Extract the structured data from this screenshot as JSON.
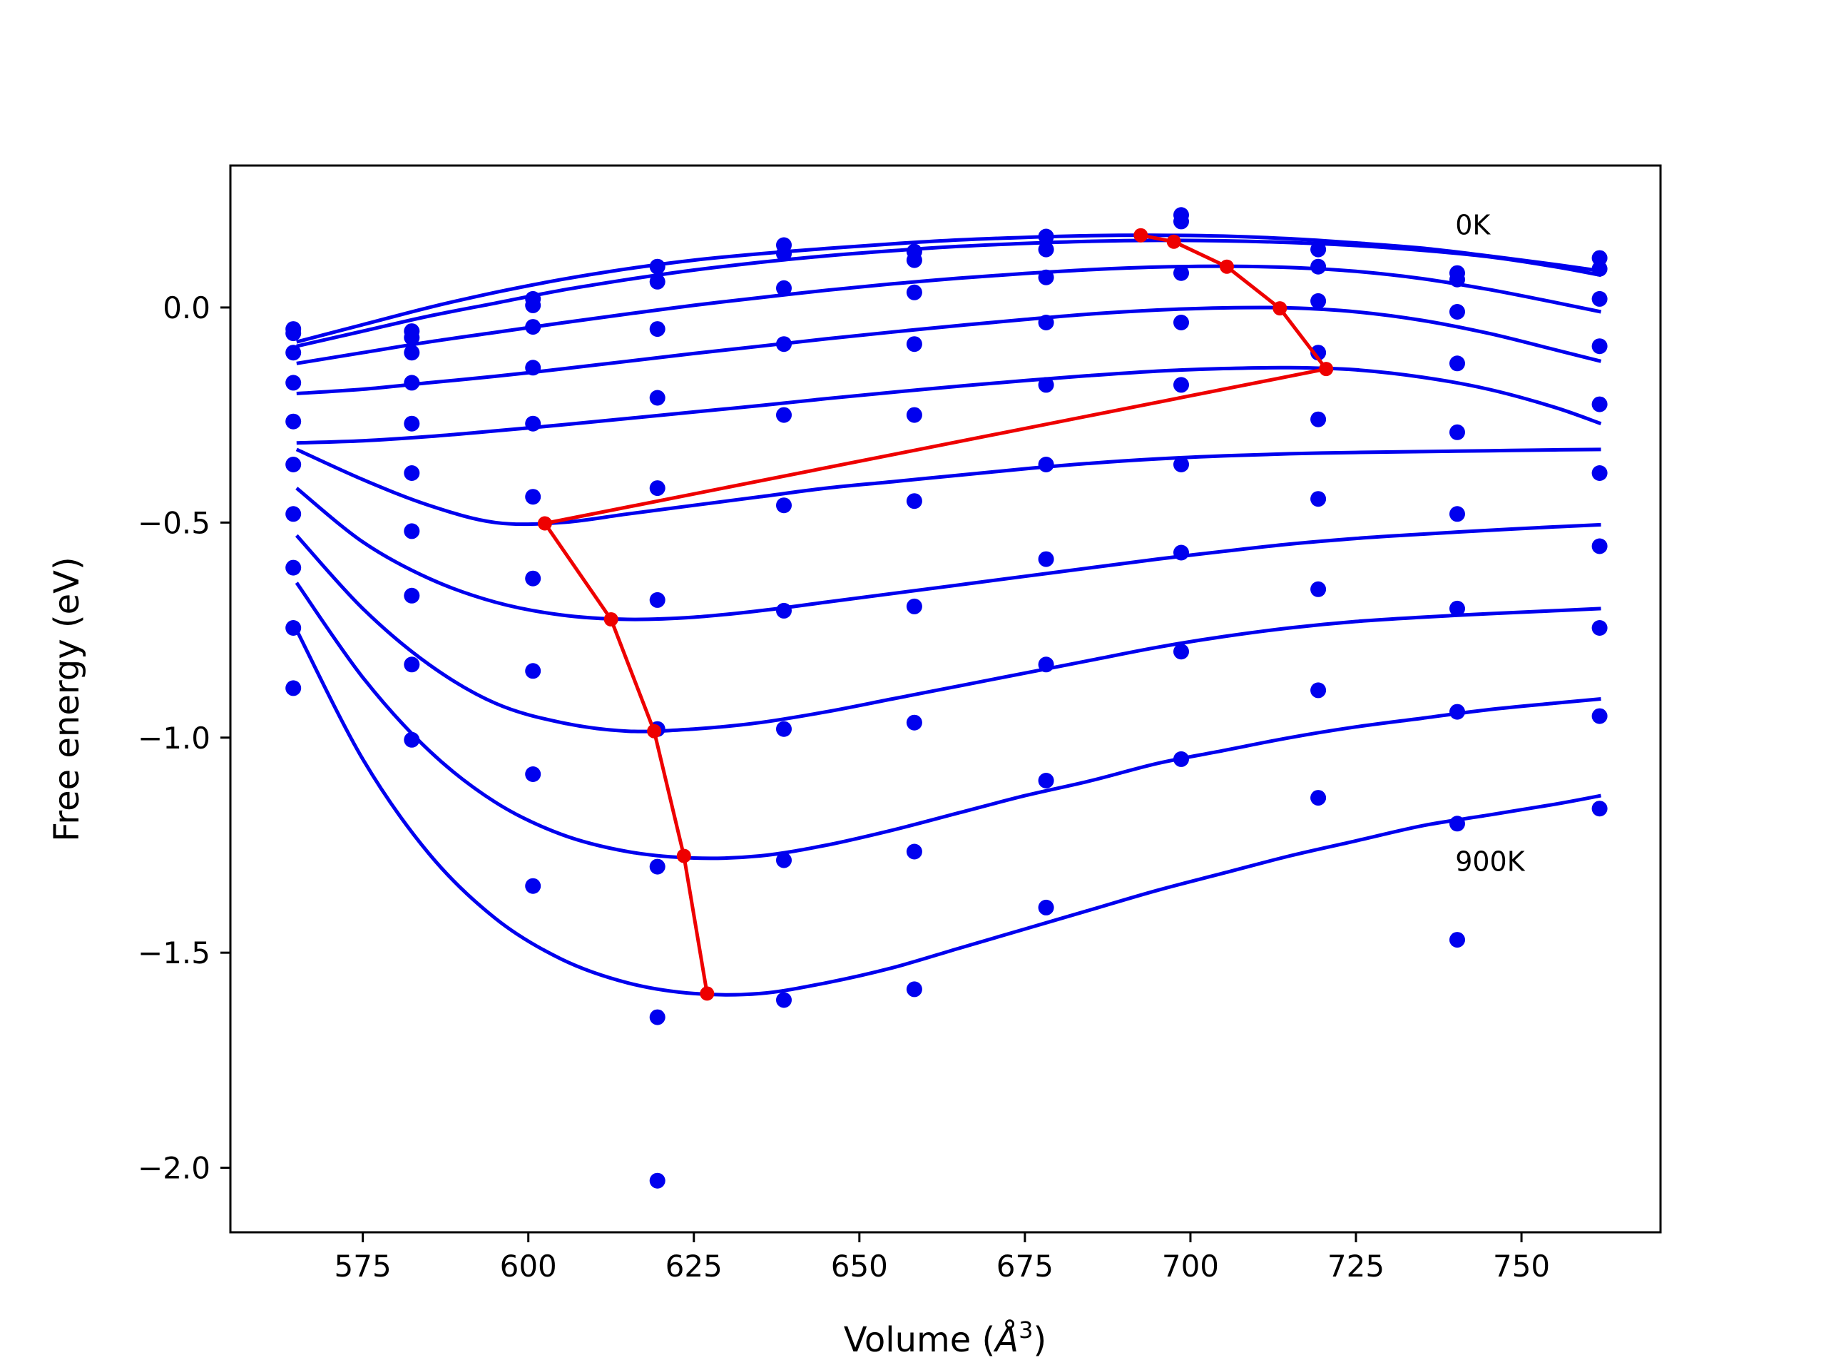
{
  "chart_data": {
    "type": "line",
    "title": "",
    "xlabel": "Volume (",
    "xlabel_unit": "Å",
    "xlabel_sup": "3",
    "xlabel_close": ")",
    "ylabel": "Free energy (eV)",
    "xlim": [
      555,
      771
    ],
    "ylim": [
      -2.15,
      0.33
    ],
    "xticks": [
      575,
      600,
      625,
      650,
      675,
      700,
      725,
      750
    ],
    "xtick_labels": [
      "575",
      "600",
      "625",
      "650",
      "675",
      "700",
      "725",
      "750"
    ],
    "yticks": [
      0.0,
      -0.5,
      -1.0,
      -1.5,
      -2.0
    ],
    "ytick_labels": [
      "0.0",
      "−0.5",
      "−1.0",
      "−1.5",
      "−2.0"
    ],
    "grid": false,
    "annotations": [
      {
        "text": "0K",
        "x": 740,
        "y": 0.17
      },
      {
        "text": "900K",
        "x": 740,
        "y": -1.31
      }
    ],
    "colors": {
      "curves": "#0000ee",
      "points": "#0000ee",
      "equilibrium": "#ee0000"
    },
    "volumes": [
      564.5,
      582.4,
      600.7,
      619.5,
      638.6,
      658.3,
      678.2,
      698.6,
      719.3,
      740.3,
      761.8
    ],
    "point_series": [
      {
        "values": [
          -0.05,
          -0.055,
          0.02,
          0.095,
          0.145,
          0.13,
          0.165,
          0.215,
          0.135,
          0.08,
          0.115
        ]
      },
      {
        "values": [
          -0.06,
          -0.07,
          0.005,
          0.06,
          0.125,
          0.11,
          0.135,
          0.2,
          0.095,
          0.065,
          0.09
        ]
      },
      {
        "values": [
          -0.105,
          -0.105,
          -0.045,
          -0.05,
          0.045,
          0.035,
          0.07,
          0.08,
          0.015,
          -0.01,
          0.02
        ]
      },
      {
        "values": [
          -0.175,
          -0.175,
          -0.14,
          -0.21,
          -0.085,
          -0.085,
          -0.035,
          -0.035,
          -0.105,
          -0.13,
          -0.09
        ]
      },
      {
        "values": [
          -0.265,
          -0.27,
          -0.27,
          -0.42,
          -0.25,
          -0.25,
          -0.18,
          -0.18,
          -0.26,
          -0.29,
          -0.225
        ]
      },
      {
        "values": [
          -0.365,
          -0.385,
          -0.44,
          -0.68,
          -0.46,
          -0.45,
          -0.365,
          -0.365,
          -0.445,
          -0.48,
          -0.385
        ]
      },
      {
        "values": [
          -0.48,
          -0.52,
          -0.63,
          -0.98,
          -0.705,
          -0.695,
          -0.585,
          -0.57,
          -0.655,
          -0.7,
          -0.555
        ]
      },
      {
        "values": [
          -0.605,
          -0.67,
          -0.845,
          -1.3,
          -0.98,
          -0.965,
          -0.83,
          -0.8,
          -0.89,
          -0.94,
          -0.745
        ]
      },
      {
        "values": [
          -0.745,
          -0.83,
          -1.085,
          -1.65,
          -1.285,
          -1.265,
          -1.1,
          -1.05,
          -1.14,
          -1.2,
          -0.95
        ]
      },
      {
        "values": [
          -0.885,
          -1.005,
          -1.345,
          -2.03,
          -1.61,
          -1.585,
          -1.395,
          null,
          null,
          -1.47,
          -1.165
        ]
      }
    ],
    "fit_x": [
      565,
      575,
      585,
      595,
      605,
      615,
      625,
      635,
      645,
      655,
      665,
      675,
      685,
      695,
      705,
      715,
      725,
      735,
      745,
      755,
      762
    ],
    "fit_series": [
      {
        "values": [
          -0.08,
          -0.04,
          0.0,
          0.035,
          0.065,
          0.09,
          0.11,
          0.125,
          0.137,
          0.148,
          0.157,
          0.163,
          0.167,
          0.168,
          0.166,
          0.16,
          0.15,
          0.138,
          0.12,
          0.1,
          0.085
        ]
      },
      {
        "values": [
          -0.09,
          -0.055,
          -0.02,
          0.01,
          0.04,
          0.065,
          0.087,
          0.105,
          0.12,
          0.132,
          0.142,
          0.149,
          0.154,
          0.156,
          0.155,
          0.151,
          0.144,
          0.133,
          0.118,
          0.095,
          0.075
        ]
      },
      {
        "values": [
          -0.13,
          -0.105,
          -0.08,
          -0.058,
          -0.036,
          -0.015,
          0.005,
          0.023,
          0.04,
          0.055,
          0.068,
          0.079,
          0.088,
          0.094,
          0.096,
          0.093,
          0.084,
          0.067,
          0.042,
          0.012,
          -0.01
        ]
      },
      {
        "values": [
          -0.2,
          -0.19,
          -0.175,
          -0.16,
          -0.143,
          -0.125,
          -0.107,
          -0.09,
          -0.073,
          -0.057,
          -0.042,
          -0.028,
          -0.015,
          -0.006,
          -0.001,
          -0.001,
          -0.01,
          -0.03,
          -0.06,
          -0.098,
          -0.125
        ]
      },
      {
        "values": [
          -0.315,
          -0.31,
          -0.3,
          -0.287,
          -0.273,
          -0.258,
          -0.243,
          -0.228,
          -0.212,
          -0.197,
          -0.183,
          -0.17,
          -0.158,
          -0.148,
          -0.142,
          -0.14,
          -0.145,
          -0.162,
          -0.19,
          -0.232,
          -0.27
        ]
      },
      {
        "values": [
          -0.33,
          -0.4,
          -0.46,
          -0.5,
          -0.5,
          -0.48,
          -0.46,
          -0.44,
          -0.42,
          -0.405,
          -0.39,
          -0.375,
          -0.362,
          -0.352,
          -0.345,
          -0.34,
          -0.337,
          -0.335,
          -0.333,
          -0.331,
          -0.33
        ]
      },
      {
        "values": [
          -0.42,
          -0.545,
          -0.63,
          -0.685,
          -0.715,
          -0.725,
          -0.72,
          -0.705,
          -0.685,
          -0.665,
          -0.645,
          -0.625,
          -0.605,
          -0.585,
          -0.567,
          -0.55,
          -0.537,
          -0.527,
          -0.518,
          -0.51,
          -0.505
        ]
      },
      {
        "values": [
          -0.53,
          -0.7,
          -0.83,
          -0.92,
          -0.965,
          -0.985,
          -0.98,
          -0.965,
          -0.94,
          -0.91,
          -0.88,
          -0.85,
          -0.82,
          -0.79,
          -0.765,
          -0.745,
          -0.73,
          -0.72,
          -0.712,
          -0.705,
          -0.7
        ]
      },
      {
        "values": [
          -0.64,
          -0.86,
          -1.03,
          -1.15,
          -1.225,
          -1.265,
          -1.28,
          -1.275,
          -1.25,
          -1.215,
          -1.175,
          -1.135,
          -1.1,
          -1.06,
          -1.03,
          -1.0,
          -0.975,
          -0.955,
          -0.935,
          -0.92,
          -0.91
        ]
      },
      {
        "values": [
          -0.75,
          -1.05,
          -1.27,
          -1.42,
          -1.515,
          -1.57,
          -1.595,
          -1.595,
          -1.57,
          -1.535,
          -1.49,
          -1.445,
          -1.4,
          -1.355,
          -1.315,
          -1.275,
          -1.24,
          -1.205,
          -1.18,
          -1.155,
          -1.135
        ]
      }
    ],
    "equilibrium_line": {
      "x": [
        692.5,
        697.5,
        705.5,
        713.5,
        720.5,
        602.5,
        612.5,
        619,
        623.5,
        627
      ],
      "y": [
        0.168,
        0.153,
        0.095,
        -0.002,
        -0.143,
        -0.502,
        -0.725,
        -0.985,
        -1.275,
        -1.595
      ]
    }
  }
}
